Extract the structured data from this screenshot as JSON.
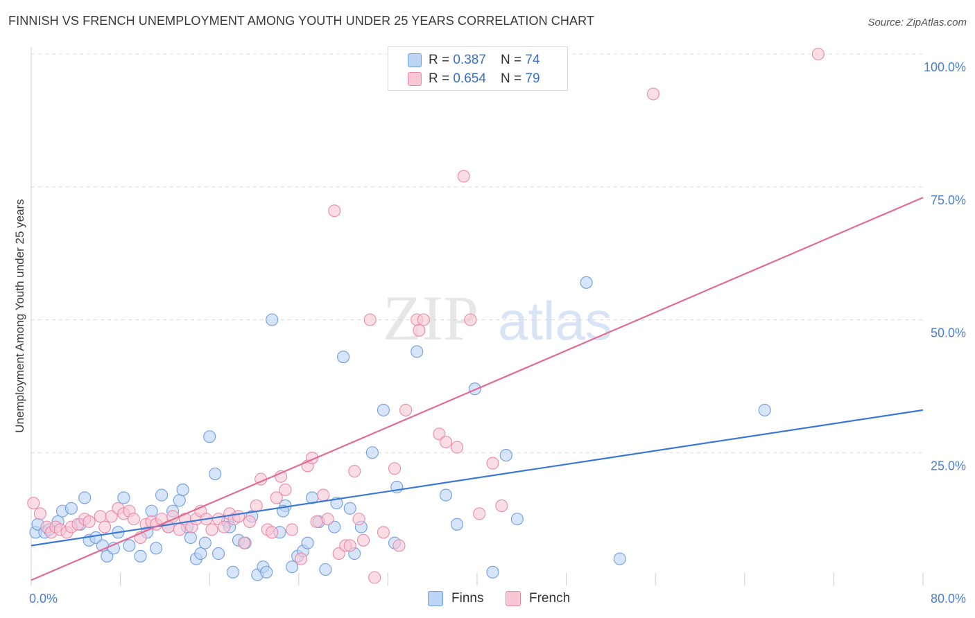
{
  "header": {
    "title": "FINNISH VS FRENCH UNEMPLOYMENT AMONG YOUTH UNDER 25 YEARS CORRELATION CHART",
    "source": "Source: ZipAtlas.com"
  },
  "colors": {
    "finns_fill": "#bcd4f6",
    "finns_stroke": "#6f9ee0",
    "finns_line": "#3a78d4",
    "french_fill": "#f9c6d6",
    "french_stroke": "#e98aa8",
    "french_line": "#e46a96",
    "axis_text": "#4a7fd0",
    "grid": "#dcdcdc"
  },
  "legend": {
    "finns": {
      "r_label": "R = ",
      "r_value": "0.387",
      "n_label": "N = ",
      "n_value": "74"
    },
    "french": {
      "r_label": "R = ",
      "r_value": "0.654",
      "n_label": "N = ",
      "n_value": "79"
    }
  },
  "watermark": {
    "zip": "ZIP",
    "atlas": "atlas"
  },
  "chart_data": {
    "type": "scatter",
    "title": "FINNISH VS FRENCH UNEMPLOYMENT AMONG YOUTH UNDER 25 YEARS CORRELATION CHART",
    "xlabel": "",
    "ylabel": "Unemployment Among Youth under 25 years",
    "xlim": [
      0,
      80
    ],
    "ylim": [
      0,
      100
    ],
    "x_tick_labels": [
      "0.0%",
      "80.0%"
    ],
    "y_ticks": [
      25,
      50,
      75,
      100
    ],
    "y_tick_labels": [
      "25.0%",
      "50.0%",
      "75.0%",
      "100.0%"
    ],
    "grid": true,
    "legend_labels": [
      "Finns",
      "French"
    ],
    "series": [
      {
        "name": "Finns",
        "trend": {
          "x": [
            0,
            80
          ],
          "y": [
            7.5,
            33
          ]
        },
        "points": [
          [
            0.4,
            10
          ],
          [
            0.6,
            11.5
          ],
          [
            1.2,
            10
          ],
          [
            1.6,
            10.5
          ],
          [
            2.4,
            12
          ],
          [
            2.8,
            14
          ],
          [
            3.6,
            14.5
          ],
          [
            4.4,
            11.5
          ],
          [
            4.8,
            16.5
          ],
          [
            5.2,
            8.5
          ],
          [
            5.8,
            9
          ],
          [
            6.4,
            7.5
          ],
          [
            6.8,
            5.5
          ],
          [
            7.4,
            7
          ],
          [
            7.8,
            10
          ],
          [
            8.3,
            16.5
          ],
          [
            8.8,
            7.5
          ],
          [
            9.8,
            5.5
          ],
          [
            10.4,
            10
          ],
          [
            10.8,
            14
          ],
          [
            11.2,
            7
          ],
          [
            11.7,
            17
          ],
          [
            12.3,
            11
          ],
          [
            12.7,
            14
          ],
          [
            13.3,
            16
          ],
          [
            13.6,
            18
          ],
          [
            14,
            11
          ],
          [
            14.3,
            9
          ],
          [
            14.8,
            5
          ],
          [
            15.2,
            6
          ],
          [
            15.6,
            8
          ],
          [
            16,
            28
          ],
          [
            16.5,
            21
          ],
          [
            16.8,
            6
          ],
          [
            17.6,
            12
          ],
          [
            17.8,
            11
          ],
          [
            18.1,
            2.5
          ],
          [
            18.6,
            8.5
          ],
          [
            19.2,
            8
          ],
          [
            19.8,
            13
          ],
          [
            20.3,
            2
          ],
          [
            20.8,
            3.5
          ],
          [
            21.1,
            2.5
          ],
          [
            21.6,
            50
          ],
          [
            22.3,
            10
          ],
          [
            22.8,
            15
          ],
          [
            22.6,
            14
          ],
          [
            23.4,
            3.5
          ],
          [
            23.9,
            5.5
          ],
          [
            24.4,
            6.5
          ],
          [
            24.8,
            8
          ],
          [
            25.2,
            16.5
          ],
          [
            25.8,
            12
          ],
          [
            26.4,
            3
          ],
          [
            27.2,
            11
          ],
          [
            27.4,
            15.5
          ],
          [
            28,
            43
          ],
          [
            28.6,
            14.5
          ],
          [
            29,
            6
          ],
          [
            29.6,
            11
          ],
          [
            30.6,
            25
          ],
          [
            31.6,
            33
          ],
          [
            32.6,
            8
          ],
          [
            32.8,
            18.5
          ],
          [
            34.6,
            44
          ],
          [
            37.2,
            17
          ],
          [
            38.2,
            11.5
          ],
          [
            39.8,
            37
          ],
          [
            41.4,
            2.5
          ],
          [
            42.6,
            24.5
          ],
          [
            43.6,
            12.5
          ],
          [
            49.8,
            57
          ],
          [
            52.8,
            5
          ],
          [
            65.8,
            33
          ]
        ]
      },
      {
        "name": "French",
        "trend": {
          "x": [
            0,
            80
          ],
          "y": [
            1,
            73
          ]
        },
        "points": [
          [
            0.2,
            15.5
          ],
          [
            0.8,
            13.5
          ],
          [
            1.4,
            11
          ],
          [
            1.8,
            10
          ],
          [
            2.2,
            11
          ],
          [
            2.6,
            10.5
          ],
          [
            3.2,
            10
          ],
          [
            3.6,
            11
          ],
          [
            4.2,
            11.5
          ],
          [
            4.8,
            12.5
          ],
          [
            5.2,
            12
          ],
          [
            6.2,
            13
          ],
          [
            6.6,
            11
          ],
          [
            7.2,
            13
          ],
          [
            7.8,
            14.5
          ],
          [
            8.3,
            13.5
          ],
          [
            8.8,
            14
          ],
          [
            9.2,
            12.5
          ],
          [
            9.8,
            9
          ],
          [
            10.3,
            11.5
          ],
          [
            10.8,
            12
          ],
          [
            11.2,
            11.5
          ],
          [
            11.7,
            12.5
          ],
          [
            12.3,
            11
          ],
          [
            12.7,
            13
          ],
          [
            13.3,
            10.5
          ],
          [
            13.8,
            12.5
          ],
          [
            14.4,
            11
          ],
          [
            14.8,
            12.5
          ],
          [
            15.2,
            14
          ],
          [
            15.7,
            12.5
          ],
          [
            16.2,
            10.5
          ],
          [
            16.8,
            12.5
          ],
          [
            17.3,
            11
          ],
          [
            17.8,
            13.5
          ],
          [
            18.2,
            12.5
          ],
          [
            18.6,
            13
          ],
          [
            19.1,
            8
          ],
          [
            19.6,
            12
          ],
          [
            20.2,
            15
          ],
          [
            20.6,
            20
          ],
          [
            21.2,
            10.5
          ],
          [
            21.6,
            10
          ],
          [
            22,
            16.5
          ],
          [
            22.4,
            20.5
          ],
          [
            22.8,
            18
          ],
          [
            23.4,
            10.5
          ],
          [
            24.2,
            5
          ],
          [
            24.8,
            22.5
          ],
          [
            25.2,
            24
          ],
          [
            25.6,
            12
          ],
          [
            26.2,
            17
          ],
          [
            26.6,
            12.5
          ],
          [
            27.2,
            70.5
          ],
          [
            27.6,
            6
          ],
          [
            28.2,
            7.5
          ],
          [
            28.6,
            7.5
          ],
          [
            29,
            21.5
          ],
          [
            29.4,
            12.5
          ],
          [
            29.8,
            8.5
          ],
          [
            30.4,
            50
          ],
          [
            30.8,
            1.5
          ],
          [
            31.6,
            10
          ],
          [
            32.6,
            22
          ],
          [
            33,
            7.5
          ],
          [
            33.6,
            33
          ],
          [
            34.6,
            50
          ],
          [
            34.8,
            48
          ],
          [
            35.2,
            50
          ],
          [
            36.6,
            28.5
          ],
          [
            37.2,
            27
          ],
          [
            38.2,
            26
          ],
          [
            38.8,
            77
          ],
          [
            39.4,
            50
          ],
          [
            40.2,
            13.5
          ],
          [
            41.4,
            23
          ],
          [
            42.2,
            15
          ],
          [
            55.8,
            92.5
          ],
          [
            70.6,
            100
          ]
        ]
      }
    ]
  }
}
